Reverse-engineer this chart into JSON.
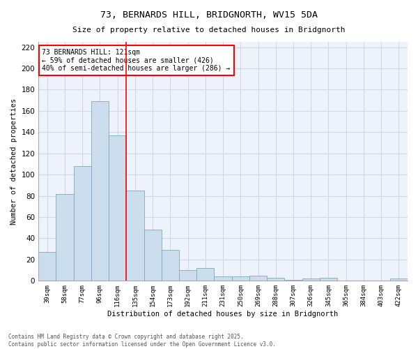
{
  "title_line1": "73, BERNARDS HILL, BRIDGNORTH, WV15 5DA",
  "title_line2": "Size of property relative to detached houses in Bridgnorth",
  "xlabel": "Distribution of detached houses by size in Bridgnorth",
  "ylabel": "Number of detached properties",
  "categories": [
    "39sqm",
    "58sqm",
    "77sqm",
    "96sqm",
    "116sqm",
    "135sqm",
    "154sqm",
    "173sqm",
    "192sqm",
    "211sqm",
    "231sqm",
    "250sqm",
    "269sqm",
    "288sqm",
    "307sqm",
    "326sqm",
    "345sqm",
    "365sqm",
    "384sqm",
    "403sqm",
    "422sqm"
  ],
  "values": [
    27,
    82,
    108,
    169,
    137,
    85,
    48,
    29,
    10,
    12,
    4,
    4,
    5,
    3,
    1,
    2,
    3,
    0,
    0,
    0,
    2
  ],
  "bar_color": "#ccdded",
  "bar_edge_color": "#7aaabb",
  "subject_line_color": "red",
  "annotation_box_color": "white",
  "annotation_box_edge_color": "red",
  "subject_label": "73 BERNARDS HILL: 121sqm",
  "annotation_line1": "← 59% of detached houses are smaller (426)",
  "annotation_line2": "40% of semi-detached houses are larger (286) →",
  "grid_color": "#d0d8e8",
  "bg_color": "#eef2fa",
  "ylim": [
    0,
    225
  ],
  "yticks": [
    0,
    20,
    40,
    60,
    80,
    100,
    120,
    140,
    160,
    180,
    200,
    220
  ],
  "footer_line1": "Contains HM Land Registry data © Crown copyright and database right 2025.",
  "footer_line2": "Contains public sector information licensed under the Open Government Licence v3.0."
}
